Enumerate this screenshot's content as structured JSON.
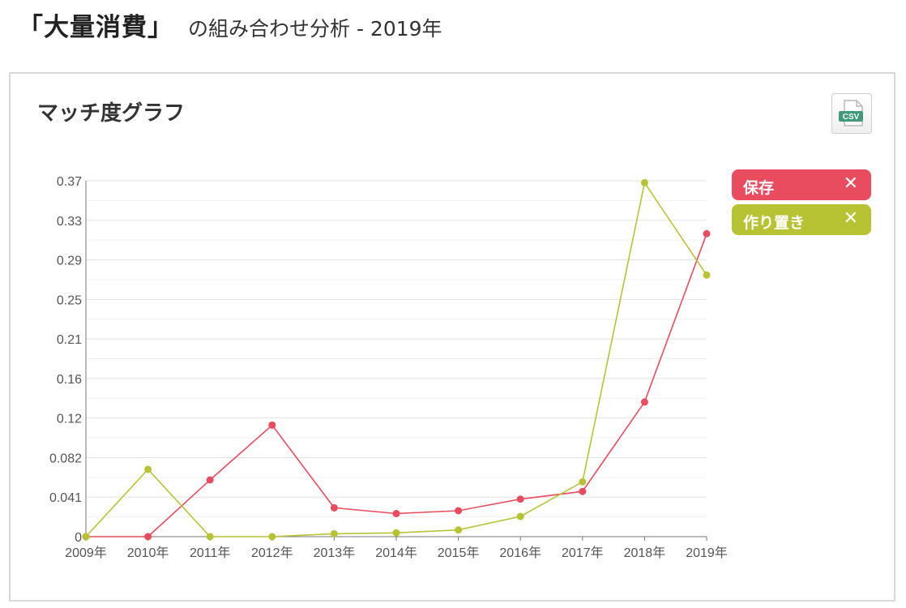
{
  "header": {
    "keyword": "「大量消費」",
    "subtitle": "の組み合わせ分析 - 2019年"
  },
  "panel": {
    "title": "マッチ度グラフ",
    "csv_label": "CSV"
  },
  "legend": [
    {
      "label": "保存",
      "remove_icon": "✕",
      "color": "#e94c5f"
    },
    {
      "label": "作り置き",
      "remove_icon": "✕",
      "color": "#b8c334"
    }
  ],
  "chart_data": {
    "type": "line",
    "x": [
      "2009年",
      "2010年",
      "2011年",
      "2012年",
      "2013年",
      "2014年",
      "2015年",
      "2016年",
      "2017年",
      "2018年",
      "2019年"
    ],
    "yticks": [
      "0",
      "0.041",
      "0.082",
      "0.12",
      "0.16",
      "0.21",
      "0.25",
      "0.29",
      "0.33",
      "0.37"
    ],
    "ylim": [
      0,
      0.37
    ],
    "grid": true,
    "legend_position": "right",
    "series": [
      {
        "name": "保存",
        "color": "#e94c5f",
        "values": [
          0,
          0,
          0.059,
          0.116,
          0.03,
          0.024,
          0.027,
          0.039,
          0.047,
          0.14,
          0.315
        ]
      },
      {
        "name": "作り置き",
        "color": "#b8c334",
        "values": [
          0,
          0.07,
          0,
          0,
          0.003,
          0.004,
          0.007,
          0.021,
          0.057,
          0.368,
          0.272
        ]
      }
    ]
  }
}
